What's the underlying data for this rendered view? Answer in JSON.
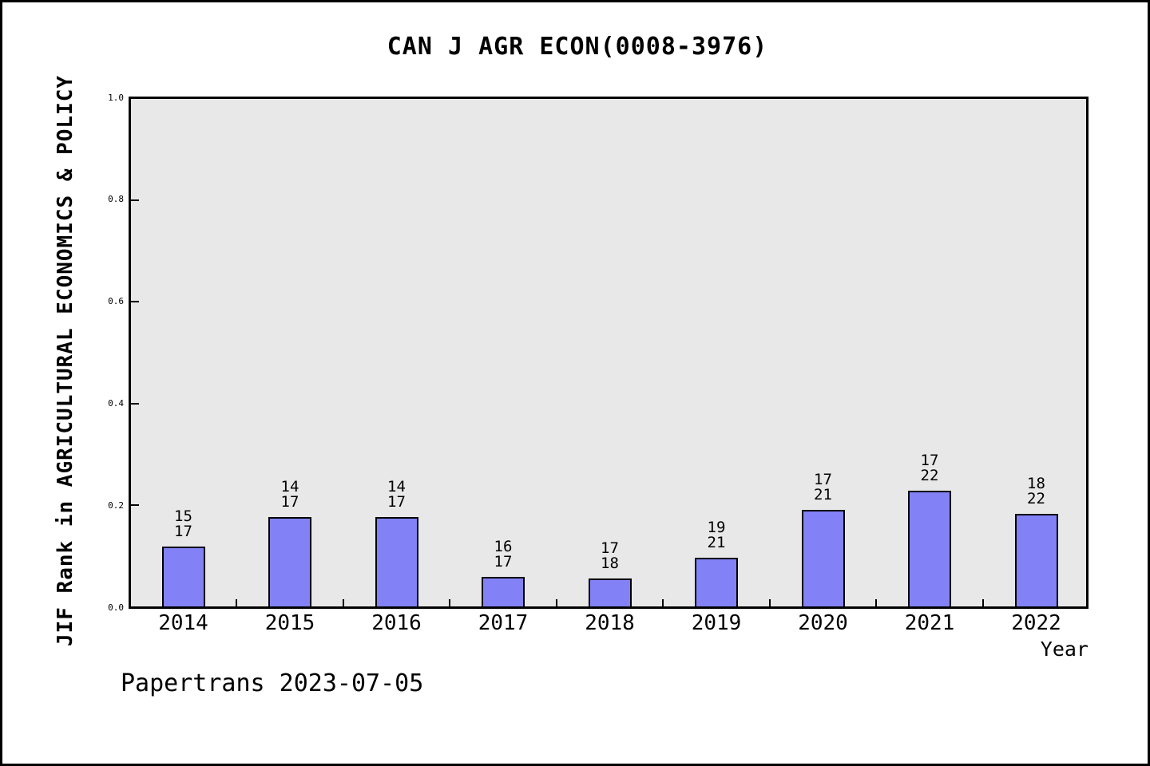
{
  "chart_data": {
    "type": "bar",
    "title": "CAN J AGR ECON(0008-3976)",
    "xlabel": "Year",
    "ylabel": "JIF Rank in AGRICULTURAL ECONOMICS & POLICY",
    "footer": "Papertrans 2023-07-05",
    "ylim": [
      0.0,
      1.0
    ],
    "ytick_labels": [
      "0.0",
      "0.2",
      "0.4",
      "0.6",
      "0.8",
      "1.0"
    ],
    "grid": false,
    "legend": null,
    "categories": [
      "2014",
      "2015",
      "2016",
      "2017",
      "2018",
      "2019",
      "2020",
      "2021",
      "2022"
    ],
    "bars": [
      {
        "year": "2014",
        "rank": 15,
        "total": 17,
        "label_top": "15",
        "label_bottom": "17",
        "value": 0.1176
      },
      {
        "year": "2015",
        "rank": 14,
        "total": 17,
        "label_top": "14",
        "label_bottom": "17",
        "value": 0.1765
      },
      {
        "year": "2016",
        "rank": 14,
        "total": 17,
        "label_top": "14",
        "label_bottom": "17",
        "value": 0.1765
      },
      {
        "year": "2017",
        "rank": 16,
        "total": 17,
        "label_top": "16",
        "label_bottom": "17",
        "value": 0.0588
      },
      {
        "year": "2018",
        "rank": 17,
        "total": 18,
        "label_top": "17",
        "label_bottom": "18",
        "value": 0.0556
      },
      {
        "year": "2019",
        "rank": 19,
        "total": 21,
        "label_top": "19",
        "label_bottom": "21",
        "value": 0.0952
      },
      {
        "year": "2020",
        "rank": 17,
        "total": 21,
        "label_top": "17",
        "label_bottom": "21",
        "value": 0.1905
      },
      {
        "year": "2021",
        "rank": 17,
        "total": 22,
        "label_top": "17",
        "label_bottom": "22",
        "value": 0.2273
      },
      {
        "year": "2022",
        "rank": 18,
        "total": 22,
        "label_top": "18",
        "label_bottom": "22",
        "value": 0.1818
      }
    ],
    "colors": {
      "bar_fill": "#8282f6",
      "bar_edge": "#000000",
      "plot_bg": "#e8e8e8",
      "page_bg": "#ffffff",
      "frame": "#000000"
    }
  }
}
